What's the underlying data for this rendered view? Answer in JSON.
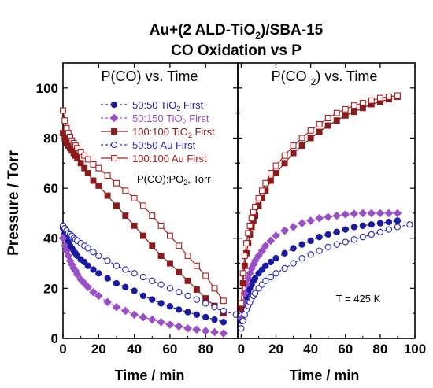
{
  "title_line1_pre": "Au+(2 ALD-TiO",
  "title_line1_sub": "2",
  "title_line1_post": ")/SBA-15",
  "title_line2": "CO Oxidation vs P",
  "y_axis_label": "Pressure / Torr",
  "legend": {
    "entries": [
      {
        "pre": "50:50 TiO",
        "sub": "2",
        "post": " First",
        "color": "#1a1aa0",
        "marker": "circle",
        "filled": true,
        "dash": "3,3"
      },
      {
        "pre": "50:150 TiO",
        "sub": "2",
        "post": " First",
        "color": "#9a4fc9",
        "marker": "diamond",
        "filled": true,
        "dash": "3,3"
      },
      {
        "pre": "100:100 TiO",
        "sub": "2",
        "post": " First",
        "color": "#8b1a1a",
        "marker": "square",
        "filled": true,
        "dash": ""
      },
      {
        "pre": "50:50 Au First",
        "sub": "",
        "post": "",
        "color": "#2727c0",
        "marker": "circle",
        "filled": false,
        "dash": "3,3"
      },
      {
        "pre": "100:100 Au First",
        "sub": "",
        "post": "",
        "color": "#b01c1c",
        "marker": "square",
        "filled": false,
        "dash": ""
      }
    ],
    "note_pre": "P(CO):PO",
    "note_sub": "2",
    "note_post": ", Torr"
  },
  "chart_data": [
    {
      "type": "scatter",
      "title": "P(CO) vs. Time",
      "xlabel": "Time / min",
      "ylabel": "Pressure / Torr",
      "xlim": [
        0,
        98
      ],
      "ylim": [
        0,
        110
      ],
      "xticks": [
        0,
        20,
        40,
        60,
        80
      ],
      "yticks": [
        0,
        20,
        40,
        60,
        80,
        100
      ],
      "series": [
        {
          "name": "50:50 TiO2 First",
          "x": [
            0,
            1,
            2,
            3,
            4,
            5,
            6,
            7,
            8,
            10,
            12,
            14,
            17,
            20,
            25,
            30,
            35,
            40,
            45,
            50,
            55,
            60,
            65,
            70,
            75,
            80,
            85,
            90
          ],
          "y": [
            44,
            42,
            40,
            38.5,
            37,
            36,
            35,
            34,
            33,
            31.5,
            30.5,
            29,
            27.5,
            26,
            24,
            22,
            20.5,
            19,
            17,
            15.5,
            14,
            12.8,
            11.5,
            10.5,
            9.5,
            8.5,
            7.5,
            6.5
          ]
        },
        {
          "name": "50:150 TiO2 First",
          "x": [
            0,
            1,
            2,
            3,
            4,
            5,
            6,
            7,
            8,
            10,
            12,
            14,
            17,
            20,
            25,
            30,
            35,
            40,
            45,
            50,
            55,
            60,
            65,
            70,
            75,
            80,
            85,
            90
          ],
          "y": [
            40,
            37,
            35,
            33,
            31,
            29.5,
            28,
            27,
            25.5,
            23.5,
            22,
            20.5,
            18.5,
            17,
            14.5,
            12.5,
            11,
            9.5,
            8.5,
            7.5,
            6.5,
            5.5,
            4.8,
            4,
            3.5,
            3,
            2.5,
            2
          ]
        },
        {
          "name": "100:100 TiO2 First",
          "x": [
            0,
            1,
            2,
            3,
            4,
            5,
            6,
            7,
            8,
            10,
            12,
            14,
            17,
            20,
            25,
            30,
            35,
            40,
            45,
            50,
            55,
            60,
            65,
            70,
            75,
            80,
            85,
            90
          ],
          "y": [
            82,
            80,
            78,
            77,
            76,
            75,
            74,
            73,
            72,
            70,
            68,
            66,
            63,
            61,
            57,
            53,
            49,
            45,
            41,
            37,
            33,
            30,
            26.5,
            23,
            19.5,
            16,
            13,
            10
          ]
        },
        {
          "name": "50:50 Au First",
          "x": [
            0,
            1,
            2,
            3,
            4,
            5,
            6,
            7,
            8,
            10,
            12,
            14,
            17,
            20,
            25,
            30,
            35,
            40,
            45,
            50,
            55,
            60,
            65,
            70,
            75,
            80,
            85,
            90,
            97
          ],
          "y": [
            45,
            44,
            43,
            42,
            41.5,
            41,
            40,
            39.5,
            39,
            38,
            37,
            36,
            34.5,
            33,
            31,
            29,
            27.5,
            26,
            24.5,
            23,
            21.5,
            20,
            18.5,
            17,
            15.5,
            14,
            12.5,
            11,
            9.5
          ]
        },
        {
          "name": "100:100 Au First",
          "x": [
            0,
            1,
            2,
            3,
            4,
            5,
            6,
            7,
            8,
            10,
            12,
            14,
            17,
            20,
            25,
            30,
            35,
            40,
            45,
            50,
            55,
            60,
            65,
            70,
            75,
            80,
            85,
            90
          ],
          "y": [
            91,
            87,
            84,
            82,
            80.5,
            79,
            78,
            77,
            76,
            74.5,
            73,
            71.5,
            69.5,
            68,
            65,
            62,
            59,
            56,
            53,
            49,
            45,
            41,
            37,
            33,
            29,
            25,
            20,
            15
          ]
        }
      ]
    },
    {
      "type": "scatter",
      "title": "P(CO2) vs. Time",
      "xlabel": "Time / min",
      "xlim": [
        -2,
        100
      ],
      "ylim": [
        0,
        110
      ],
      "xticks": [
        0,
        20,
        40,
        60,
        80,
        100
      ],
      "annotation": "T = 425 K",
      "series": [
        {
          "name": "50:50 TiO2 First",
          "x": [
            0,
            1,
            2,
            3,
            4,
            5,
            6,
            7,
            8,
            10,
            12,
            14,
            17,
            20,
            25,
            30,
            35,
            40,
            45,
            50,
            55,
            60,
            65,
            70,
            75,
            80,
            85,
            90
          ],
          "y": [
            7,
            11,
            14,
            16.5,
            18.5,
            20,
            21.5,
            23,
            24,
            26,
            27.5,
            29,
            30.5,
            32,
            34,
            36,
            37.5,
            39,
            40.5,
            41.5,
            42.5,
            43.5,
            44.5,
            45,
            45.5,
            46,
            46.5,
            47
          ]
        },
        {
          "name": "50:150 TiO2 First",
          "x": [
            0,
            1,
            2,
            3,
            4,
            5,
            6,
            7,
            8,
            10,
            12,
            14,
            17,
            20,
            25,
            30,
            35,
            40,
            45,
            50,
            55,
            60,
            65,
            70,
            75,
            80,
            85,
            90
          ],
          "y": [
            8,
            14,
            18,
            21.5,
            24,
            26,
            28,
            29.5,
            31,
            33,
            35,
            37,
            39,
            41,
            43,
            44.5,
            46,
            47,
            48,
            48.5,
            49,
            49.5,
            49.8,
            50,
            50,
            50,
            50,
            50
          ]
        },
        {
          "name": "100:100 TiO2 First",
          "x": [
            0,
            1,
            2,
            3,
            4,
            5,
            6,
            7,
            8,
            10,
            12,
            14,
            17,
            20,
            25,
            30,
            35,
            40,
            45,
            50,
            55,
            60,
            65,
            70,
            75,
            80,
            85,
            90
          ],
          "y": [
            12,
            22,
            29,
            34,
            38,
            41.5,
            44.5,
            47,
            49,
            53,
            56,
            59,
            63,
            66,
            70,
            74,
            77,
            80,
            82.5,
            85,
            87,
            89,
            90.5,
            92,
            93.5,
            94.5,
            95.5,
            96.5
          ]
        },
        {
          "name": "50:50 Au First",
          "x": [
            0,
            1,
            2,
            3,
            4,
            5,
            6,
            7,
            8,
            10,
            12,
            14,
            17,
            20,
            25,
            30,
            35,
            40,
            45,
            50,
            55,
            60,
            65,
            70,
            75,
            80,
            85,
            90,
            97
          ],
          "y": [
            4,
            7,
            9.5,
            11.5,
            13,
            14.5,
            16,
            17,
            18,
            20,
            21.5,
            23,
            24.5,
            26,
            28,
            30,
            32,
            33.5,
            35,
            36.5,
            37.5,
            38.5,
            39.5,
            40.5,
            41.5,
            42.5,
            43.5,
            44.5,
            45.5
          ]
        },
        {
          "name": "100:100 Au First",
          "x": [
            0,
            1,
            2,
            3,
            4,
            5,
            6,
            7,
            8,
            10,
            12,
            14,
            17,
            20,
            25,
            30,
            35,
            40,
            45,
            50,
            55,
            60,
            65,
            70,
            75,
            80,
            85,
            90
          ],
          "y": [
            14,
            26,
            33,
            38,
            42,
            45,
            48,
            50.5,
            52.5,
            56,
            59,
            62,
            66,
            69,
            73,
            77,
            80,
            83,
            85.5,
            88,
            90,
            91.5,
            93,
            94,
            95,
            96,
            96.5,
            97
          ]
        }
      ]
    }
  ]
}
